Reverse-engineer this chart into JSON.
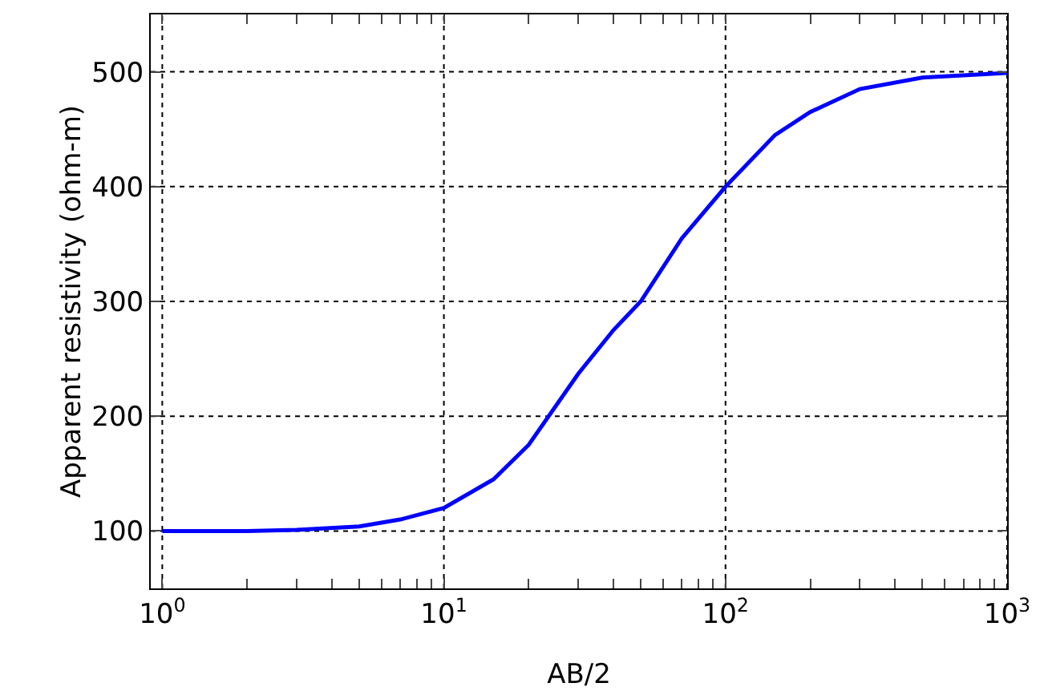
{
  "chart_data": {
    "type": "line",
    "xlabel": "AB/2",
    "ylabel": "Apparent resistivity (ohm-m)",
    "log": "x",
    "x": [
      1,
      2,
      3,
      5,
      7,
      10,
      15,
      20,
      30,
      40,
      50,
      70,
      100,
      150,
      200,
      300,
      500,
      1000
    ],
    "series": [
      {
        "color": "#0000ff",
        "values": [
          100,
          100,
          101,
          104,
          110,
          120,
          145,
          175,
          237,
          275,
          300,
          355,
          400,
          445,
          465,
          485,
          495,
          499
        ]
      }
    ],
    "xlim": [
      0.91,
      1000
    ],
    "ylim": [
      50,
      550
    ],
    "xticks": [
      {
        "value": 1,
        "label": "10$^{0}$"
      },
      {
        "value": 2,
        "label": null
      },
      {
        "value": 3,
        "label": null
      },
      {
        "value": 4,
        "label": null
      },
      {
        "value": 5,
        "label": null
      },
      {
        "value": 6,
        "label": null
      },
      {
        "value": 7,
        "label": null
      },
      {
        "value": 8,
        "label": null
      },
      {
        "value": 9,
        "label": null
      },
      {
        "value": 10,
        "label": "10$^{1}$"
      },
      {
        "value": 20,
        "label": null
      },
      {
        "value": 30,
        "label": null
      },
      {
        "value": 40,
        "label": null
      },
      {
        "value": 50,
        "label": null
      },
      {
        "value": 60,
        "label": null
      },
      {
        "value": 70,
        "label": null
      },
      {
        "value": 80,
        "label": null
      },
      {
        "value": 90,
        "label": null
      },
      {
        "value": 100,
        "label": "10$^{2}$"
      },
      {
        "value": 200,
        "label": null
      },
      {
        "value": 300,
        "label": null
      },
      {
        "value": 400,
        "label": null
      },
      {
        "value": 500,
        "label": null
      },
      {
        "value": 600,
        "label": null
      },
      {
        "value": 700,
        "label": null
      },
      {
        "value": 800,
        "label": null
      },
      {
        "value": 900,
        "label": null
      },
      {
        "value": 1000,
        "label": "10$^{3}$"
      }
    ],
    "yticks": [
      100,
      200,
      300,
      400,
      500
    ],
    "grid": true,
    "marker": "none",
    "line_style": "solid"
  }
}
